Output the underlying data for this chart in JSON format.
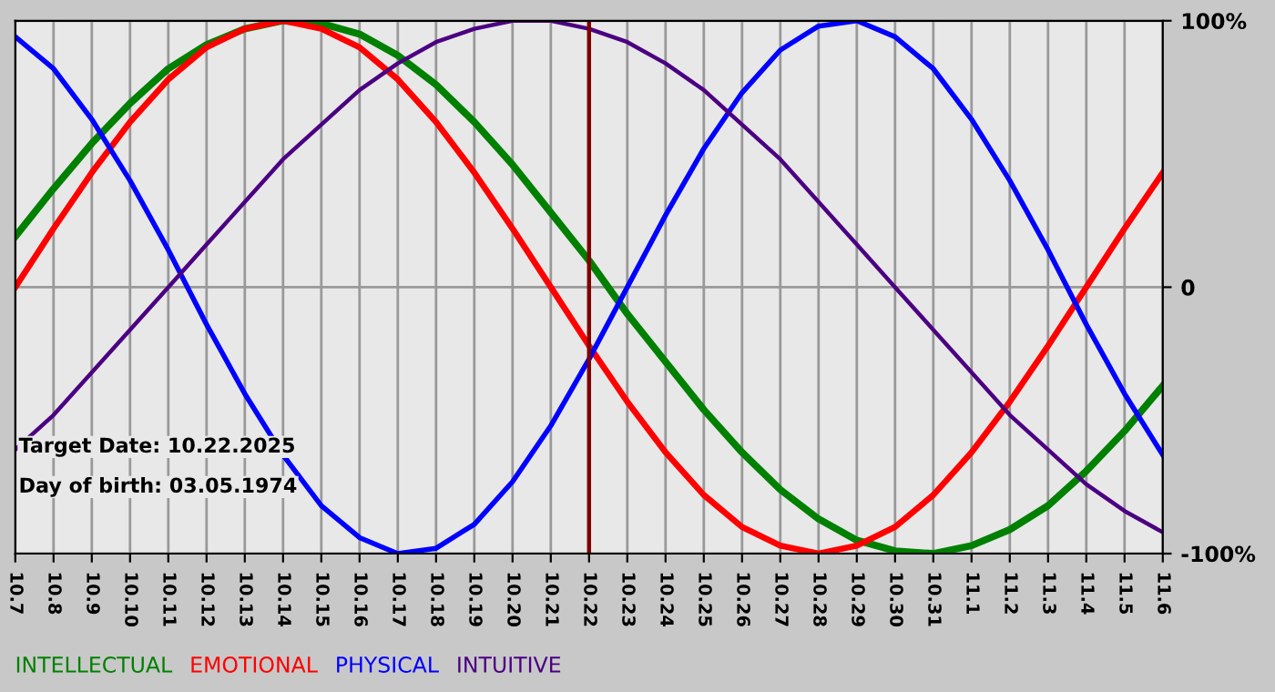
{
  "chart_data": {
    "type": "line",
    "categories": [
      "10.7",
      "10.8",
      "10.9",
      "10.10",
      "10.11",
      "10.12",
      "10.13",
      "10.14",
      "10.15",
      "10.16",
      "10.17",
      "10.18",
      "10.19",
      "10.20",
      "10.21",
      "10.22",
      "10.23",
      "10.24",
      "10.25",
      "10.26",
      "10.27",
      "10.28",
      "10.29",
      "10.30",
      "10.31",
      "11.1",
      "11.2",
      "11.3",
      "11.4",
      "11.5",
      "11.6"
    ],
    "series": [
      {
        "name": "INTELLECTUAL",
        "color": "#008000",
        "values": [
          19,
          37,
          54,
          69,
          82,
          91,
          97,
          100,
          99,
          95,
          87,
          76,
          62,
          46,
          28,
          10,
          -10,
          -28,
          -46,
          -62,
          -76,
          -87,
          -95,
          -99,
          -100,
          -97,
          -91,
          -82,
          -69,
          -54,
          -37
        ]
      },
      {
        "name": "EMOTIONAL",
        "color": "#ff0000",
        "values": [
          0,
          22,
          43,
          62,
          78,
          90,
          97,
          100,
          97,
          90,
          78,
          62,
          43,
          22,
          0,
          -22,
          -43,
          -62,
          -78,
          -90,
          -97,
          -100,
          -97,
          -90,
          -78,
          -62,
          -43,
          -22,
          0,
          22,
          43
        ]
      },
      {
        "name": "PHYSICAL",
        "color": "#0000ff",
        "values": [
          94,
          82,
          63,
          40,
          14,
          -14,
          -40,
          -63,
          -82,
          -94,
          -100,
          -98,
          -89,
          -73,
          -52,
          -27,
          0,
          27,
          52,
          73,
          89,
          98,
          100,
          94,
          82,
          63,
          40,
          14,
          -14,
          -40,
          -63
        ]
      },
      {
        "name": "INTUITIVE",
        "color": "#4b0082",
        "values": [
          -61,
          -48,
          -32,
          -16,
          0,
          16,
          32,
          48,
          61,
          74,
          84,
          92,
          97,
          100,
          100,
          97,
          92,
          84,
          74,
          61,
          48,
          32,
          16,
          0,
          -16,
          -32,
          -48,
          -61,
          -74,
          -84,
          -92
        ]
      }
    ],
    "ylim": [
      -100,
      100
    ],
    "yticks": [
      {
        "value": 100,
        "label": "100%"
      },
      {
        "value": 0,
        "label": "0"
      },
      {
        "value": -100,
        "label": "-100%"
      }
    ],
    "ref_lines": [
      {
        "axis": "x",
        "value": "10.22",
        "color": "#800000"
      }
    ],
    "annotations": [
      "Target Date: 10.22.2025",
      "Day of birth: 03.05.1974"
    ],
    "grid": true,
    "legend": "bottom left"
  }
}
